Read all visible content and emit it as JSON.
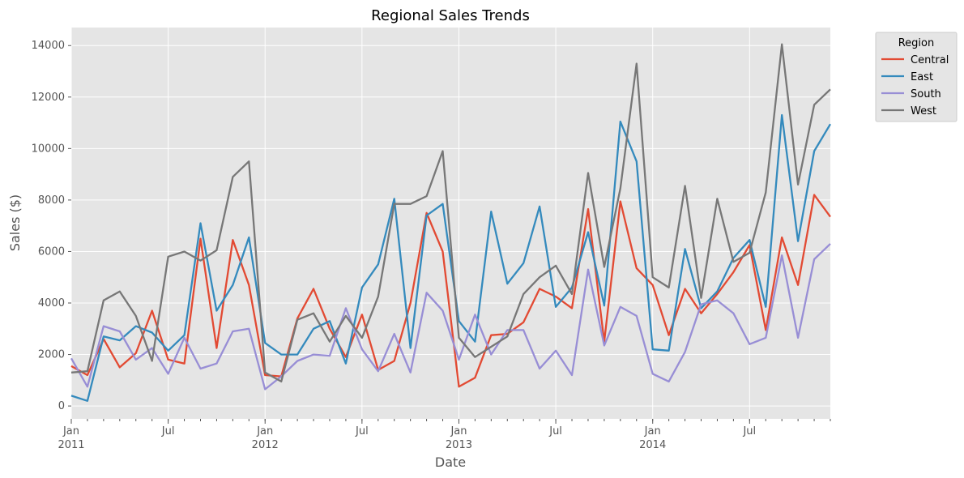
{
  "chart_data": {
    "type": "line",
    "title": "Regional Sales Trends",
    "xlabel": "Date",
    "ylabel": "Sales ($)",
    "legend_title": "Region",
    "legend_position": "outside-top-right",
    "grid": true,
    "ylim": [
      -500,
      14700
    ],
    "xlim": [
      "2011-01",
      "2014-12"
    ],
    "y_ticks": [
      0,
      2000,
      4000,
      6000,
      8000,
      10000,
      12000,
      14000
    ],
    "x_tick_labels": [
      {
        "month": "2011-01",
        "label": "Jan",
        "year": "2011"
      },
      {
        "month": "2011-07",
        "label": "Jul",
        "year": ""
      },
      {
        "month": "2012-01",
        "label": "Jan",
        "year": "2012"
      },
      {
        "month": "2012-07",
        "label": "Jul",
        "year": ""
      },
      {
        "month": "2013-01",
        "label": "Jan",
        "year": "2013"
      },
      {
        "month": "2013-07",
        "label": "Jul",
        "year": ""
      },
      {
        "month": "2014-01",
        "label": "Jan",
        "year": "2014"
      },
      {
        "month": "2014-07",
        "label": "Jul",
        "year": ""
      }
    ],
    "x": [
      "2011-01",
      "2011-02",
      "2011-03",
      "2011-04",
      "2011-05",
      "2011-06",
      "2011-07",
      "2011-08",
      "2011-09",
      "2011-10",
      "2011-11",
      "2011-12",
      "2012-01",
      "2012-02",
      "2012-03",
      "2012-04",
      "2012-05",
      "2012-06",
      "2012-07",
      "2012-08",
      "2012-09",
      "2012-10",
      "2012-11",
      "2012-12",
      "2013-01",
      "2013-02",
      "2013-03",
      "2013-04",
      "2013-05",
      "2013-06",
      "2013-07",
      "2013-08",
      "2013-09",
      "2013-10",
      "2013-11",
      "2013-12",
      "2014-01",
      "2014-02",
      "2014-03",
      "2014-04",
      "2014-05",
      "2014-06",
      "2014-07",
      "2014-08",
      "2014-09",
      "2014-10",
      "2014-11",
      "2014-12"
    ],
    "series": [
      {
        "name": "Central",
        "color": "#e24a33",
        "values": [
          1550,
          1200,
          2600,
          1500,
          2050,
          3700,
          1800,
          1650,
          6500,
          2250,
          6450,
          4700,
          1200,
          1150,
          3400,
          4550,
          3000,
          1900,
          3550,
          1400,
          1750,
          4000,
          7500,
          6000,
          750,
          1100,
          2750,
          2800,
          3250,
          4550,
          4250,
          3800,
          7650,
          2500,
          7950,
          5350,
          4700,
          2750,
          4550,
          3600,
          4350,
          5200,
          6250,
          2950,
          6550,
          4700,
          8200,
          7350
        ]
      },
      {
        "name": "East",
        "color": "#348abd",
        "values": [
          400,
          200,
          2700,
          2550,
          3100,
          2850,
          2150,
          2750,
          7100,
          3700,
          4700,
          6550,
          2450,
          2000,
          2000,
          3000,
          3300,
          1650,
          4600,
          5500,
          8050,
          2250,
          7400,
          7850,
          3300,
          2500,
          7550,
          4750,
          5550,
          7750,
          3850,
          4600,
          6750,
          3900,
          11050,
          9500,
          2200,
          2150,
          6100,
          3800,
          4450,
          5750,
          6450,
          3850,
          11300,
          6400,
          9900,
          10950
        ]
      },
      {
        "name": "South",
        "color": "#988ed5",
        "values": [
          1850,
          750,
          3100,
          2900,
          1800,
          2250,
          1250,
          2650,
          1450,
          1650,
          2900,
          3000,
          650,
          1150,
          1750,
          2000,
          1950,
          3800,
          2200,
          1350,
          2800,
          1300,
          4400,
          3700,
          1800,
          3550,
          2000,
          2950,
          2950,
          1450,
          2150,
          1200,
          5300,
          2350,
          3850,
          3500,
          1250,
          950,
          2100,
          3950,
          4100,
          3600,
          2400,
          2650,
          5850,
          2650,
          5700,
          6300
        ]
      },
      {
        "name": "West",
        "color": "#777777",
        "values": [
          1300,
          1350,
          4100,
          4450,
          3500,
          1750,
          5800,
          6000,
          5650,
          6050,
          8900,
          9500,
          1300,
          950,
          3350,
          3600,
          2500,
          3500,
          2650,
          4250,
          7850,
          7850,
          8150,
          9900,
          2650,
          1900,
          2300,
          2700,
          4350,
          5000,
          5450,
          4350,
          9050,
          5400,
          8450,
          13300,
          5000,
          4600,
          8550,
          4200,
          8050,
          5600,
          5950,
          8300,
          14050,
          8600,
          11700,
          12300
        ]
      }
    ]
  }
}
